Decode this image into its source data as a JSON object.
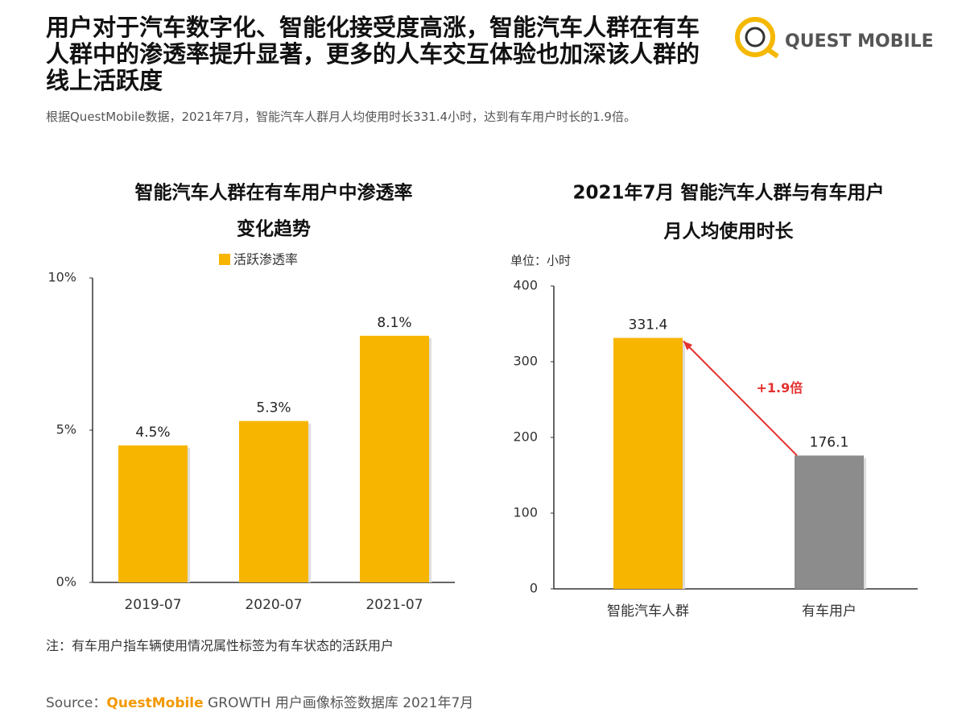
{
  "header": {
    "title": "用户对于汽车数字化、智能化接受度高涨，智能汽车人群在有车人群中的渗透率提升显著，更多的人车交互体验也加深该人群的线上活跃度",
    "subtitle": "根据QuestMobile数据，2021年7月，智能汽车人群月人均使用时长331.4小时，达到有车用户时长的1.9倍。",
    "logo": "QUEST MOBILE"
  },
  "chart_data": [
    {
      "type": "bar",
      "title": [
        "智能汽车人群在有车用户中渗透率",
        "变化趋势"
      ],
      "categories": [
        "2019-07",
        "2020-07",
        "2021-07"
      ],
      "series": [
        {
          "name": "活跃渗透率",
          "color": "#f7b500",
          "values": [
            4.5,
            5.3,
            8.1
          ],
          "value_labels": [
            "4.5%",
            "5.3%",
            "8.1%"
          ]
        }
      ],
      "ylim": [
        0,
        10
      ],
      "yticks": [
        {
          "value": 0,
          "label": "0%"
        },
        {
          "value": 5,
          "label": "5%"
        },
        {
          "value": 10,
          "label": "10%"
        }
      ],
      "legend": "top"
    },
    {
      "type": "bar",
      "title": [
        "2021年7月 智能汽车人群与有车用户",
        "月人均使用时长"
      ],
      "unit": "单位：小时",
      "categories": [
        "智能汽车人群",
        "有车用户"
      ],
      "values": [
        331.4,
        176.1
      ],
      "colors": [
        "#f7b500",
        "#8c8c8c"
      ],
      "ylim": [
        0,
        400
      ],
      "yticks": [
        0,
        100,
        200,
        300,
        400
      ],
      "annotation": {
        "text": "+1.9倍",
        "color": "#e5312f"
      }
    }
  ],
  "note": "注：有车用户指车辆使用情况属性标签为有车状态的活跃用户",
  "source": {
    "label": "Source：",
    "brand": "QuestMobile",
    "text": "GROWTH 用户画像标签数据库 2021年7月"
  }
}
